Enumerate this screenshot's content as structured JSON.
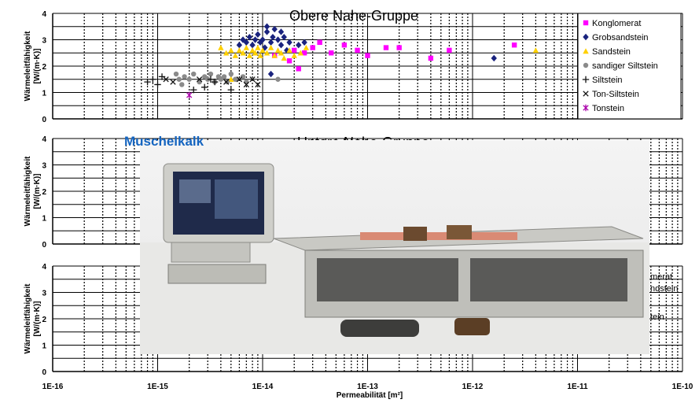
{
  "chart_data": [
    {
      "type": "scatter",
      "title": "Obere Nahe-Gruppe",
      "ylabel": "Wärmeleitfähigkeit [W/(m·K)]",
      "xlabel": "",
      "xscale": "log",
      "xlim": [
        1e-16,
        1e-10
      ],
      "ylim": [
        0,
        4
      ],
      "yticks": [
        "0",
        "1",
        "2",
        "3",
        "4"
      ],
      "grid": true,
      "legend_position": "right",
      "series": [
        {
          "name": "Konglomerat",
          "marker": "square",
          "color": "#ff00ff",
          "points": [
            [
              1.3e-14,
              2.4
            ],
            [
              1.8e-14,
              2.2
            ],
            [
              2e-14,
              2.6
            ],
            [
              2.2e-14,
              1.9
            ],
            [
              2.5e-14,
              2.5
            ],
            [
              3e-14,
              2.7
            ],
            [
              3.5e-14,
              2.9
            ],
            [
              4.5e-14,
              2.5
            ],
            [
              6e-14,
              2.8
            ],
            [
              8e-14,
              2.6
            ],
            [
              1e-13,
              2.4
            ],
            [
              1.5e-13,
              2.7
            ],
            [
              2e-13,
              2.7
            ],
            [
              4e-13,
              2.3
            ],
            [
              6e-13,
              2.6
            ],
            [
              2.5e-12,
              2.8
            ]
          ]
        },
        {
          "name": "Grobsandstein",
          "marker": "diamond",
          "color": "#1a237e",
          "points": [
            [
              6e-15,
              2.8
            ],
            [
              6.5e-15,
              3.0
            ],
            [
              7e-15,
              2.9
            ],
            [
              7.5e-15,
              3.1
            ],
            [
              8e-15,
              2.8
            ],
            [
              8.5e-15,
              3.0
            ],
            [
              9e-15,
              3.2
            ],
            [
              9.5e-15,
              2.9
            ],
            [
              1e-14,
              3.0
            ],
            [
              1.05e-14,
              2.7
            ],
            [
              1.1e-14,
              3.3
            ],
            [
              1.2e-14,
              2.9
            ],
            [
              1.25e-14,
              3.1
            ],
            [
              1.3e-14,
              3.4
            ],
            [
              1.4e-14,
              3.0
            ],
            [
              1.5e-14,
              2.8
            ],
            [
              1.6e-14,
              3.1
            ],
            [
              1.7e-14,
              2.6
            ],
            [
              1.8e-14,
              2.9
            ],
            [
              1.2e-14,
              1.7
            ],
            [
              2.2e-14,
              2.8
            ],
            [
              2.5e-14,
              2.9
            ],
            [
              1.1e-14,
              3.5
            ],
            [
              1.5e-14,
              3.3
            ],
            [
              1.6e-12,
              2.3
            ]
          ]
        },
        {
          "name": "Sandstein",
          "marker": "triangle",
          "color": "#ffd000",
          "points": [
            [
              4e-15,
              2.7
            ],
            [
              4.5e-15,
              2.5
            ],
            [
              5e-15,
              2.6
            ],
            [
              5.5e-15,
              2.4
            ],
            [
              6e-15,
              2.6
            ],
            [
              6.5e-15,
              2.5
            ],
            [
              7e-15,
              2.7
            ],
            [
              7.5e-15,
              2.4
            ],
            [
              8e-15,
              2.6
            ],
            [
              8.5e-15,
              2.5
            ],
            [
              9e-15,
              2.7
            ],
            [
              9.5e-15,
              2.4
            ],
            [
              1e-14,
              2.6
            ],
            [
              1.1e-14,
              2.5
            ],
            [
              1.2e-14,
              2.7
            ],
            [
              1.3e-14,
              2.4
            ],
            [
              1.4e-14,
              2.6
            ],
            [
              1.5e-14,
              2.5
            ],
            [
              1.6e-14,
              2.3
            ],
            [
              1.8e-14,
              2.6
            ],
            [
              2e-14,
              2.4
            ],
            [
              2.3e-14,
              2.5
            ],
            [
              2.6e-14,
              2.7
            ],
            [
              5e-15,
              1.5
            ],
            [
              4e-12,
              2.6
            ]
          ]
        },
        {
          "name": "sandiger Siltstein",
          "marker": "circle",
          "color": "#8a8a8a",
          "points": [
            [
              1.8e-15,
              1.6
            ],
            [
              2e-15,
              1.5
            ],
            [
              2.2e-15,
              1.7
            ],
            [
              2.5e-15,
              1.4
            ],
            [
              2.8e-15,
              1.6
            ],
            [
              3e-15,
              1.5
            ],
            [
              3.2e-15,
              1.7
            ],
            [
              3.5e-15,
              1.4
            ],
            [
              3.8e-15,
              1.6
            ],
            [
              4e-15,
              1.5
            ],
            [
              4.3e-15,
              1.6
            ],
            [
              4.6e-15,
              1.4
            ],
            [
              5e-15,
              1.7
            ],
            [
              5.5e-15,
              1.5
            ],
            [
              6.5e-15,
              1.6
            ],
            [
              7e-15,
              1.4
            ],
            [
              1.6e-15,
              1.5
            ],
            [
              1.5e-15,
              1.7
            ],
            [
              1.7e-15,
              1.3
            ],
            [
              1.4e-14,
              1.5
            ]
          ]
        },
        {
          "name": "Siltstein",
          "marker": "plus",
          "color": "#111111",
          "points": [
            [
              8e-16,
              1.4
            ],
            [
              9e-16,
              1.5
            ],
            [
              1e-15,
              1.3
            ],
            [
              1.1e-15,
              1.6
            ],
            [
              2.2e-15,
              1.1
            ],
            [
              2.8e-15,
              1.2
            ],
            [
              3.2e-15,
              1.5
            ],
            [
              3.5e-15,
              1.4
            ],
            [
              5e-15,
              1.1
            ]
          ]
        },
        {
          "name": "Ton-Siltstein",
          "marker": "cross",
          "color": "#111111",
          "points": [
            [
              1.2e-15,
              1.5
            ],
            [
              1.4e-15,
              1.4
            ],
            [
              2.5e-15,
              1.5
            ],
            [
              4.5e-15,
              1.4
            ],
            [
              6e-15,
              1.5
            ],
            [
              7e-15,
              1.3
            ],
            [
              8e-15,
              1.5
            ],
            [
              9e-15,
              1.3
            ]
          ]
        },
        {
          "name": "Tonstein",
          "marker": "asterisk",
          "color": "#aa00aa",
          "points": [
            [
              2e-15,
              0.9
            ]
          ]
        }
      ]
    },
    {
      "type": "scatter",
      "title": "Untere Nahe-Gruppe",
      "ylabel": "Wärmeleitfähigkeit [W/(m·K)]",
      "xscale": "log",
      "xlim": [
        1e-16,
        1e-10
      ],
      "ylim": [
        0,
        4
      ],
      "yticks": [
        "0",
        "1",
        "2",
        "3",
        "4"
      ],
      "grid": true,
      "series": []
    },
    {
      "type": "scatter",
      "title": "",
      "ylabel": "Wärmeleitfähigkeit [W/(m·K)]",
      "xlabel": "Permeabilität [m²]",
      "xscale": "log",
      "xlim": [
        1e-16,
        1e-10
      ],
      "ylim": [
        0,
        4
      ],
      "yticks": [
        "0",
        "1",
        "2",
        "3",
        "4"
      ],
      "xticks": [
        "1E-16",
        "1E-15",
        "1E-14",
        "1E-13",
        "1E-12",
        "1E-11",
        "1E-10"
      ],
      "grid": true,
      "series": []
    }
  ],
  "overlay": {
    "muschelkalk": "Muschelkalk",
    "legend_fragments": [
      "merat",
      "ndstein",
      "tein"
    ]
  },
  "colors": {
    "title_blue": "#1565c0",
    "photo_frame": "#9a9a96"
  }
}
